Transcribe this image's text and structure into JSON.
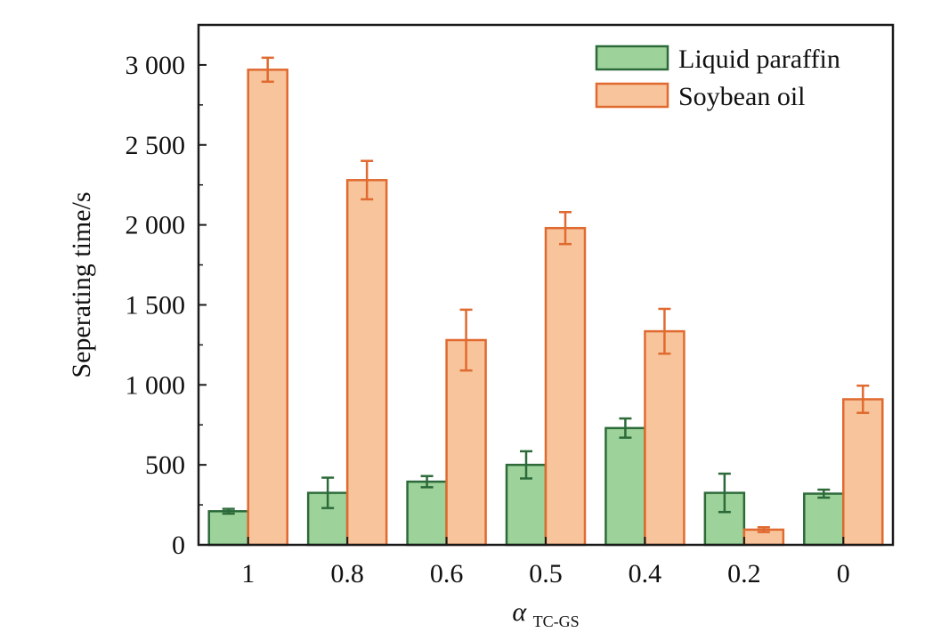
{
  "chart_data": {
    "type": "bar",
    "categories": [
      "1",
      "0.8",
      "0.6",
      "0.5",
      "0.4",
      "0.2",
      "0"
    ],
    "series": [
      {
        "name": "Liquid paraffin",
        "values": [
          210,
          325,
          395,
          500,
          730,
          325,
          320
        ],
        "errors": [
          15,
          95,
          35,
          85,
          60,
          120,
          25
        ],
        "fill": "#9dd39a",
        "stroke": "#2d6a3a"
      },
      {
        "name": "Soybean oil",
        "values": [
          2970,
          2280,
          1280,
          1980,
          1335,
          95,
          910
        ],
        "errors": [
          75,
          120,
          190,
          100,
          140,
          15,
          85
        ],
        "fill": "#f8c49b",
        "stroke": "#e06a30"
      }
    ],
    "ylabel": "Seperating time/s",
    "xlabel": {
      "symbol": "α",
      "subscript": "TC-GS"
    },
    "ylim": [
      0,
      3250
    ],
    "yticks": [
      0,
      500,
      1000,
      1500,
      2000,
      2500,
      3000
    ],
    "ytick_labels": [
      "0",
      "500",
      "1 000",
      "1 500",
      "2 000",
      "2 500",
      "3 000"
    ],
    "legend": "top-right",
    "grid": false
  }
}
